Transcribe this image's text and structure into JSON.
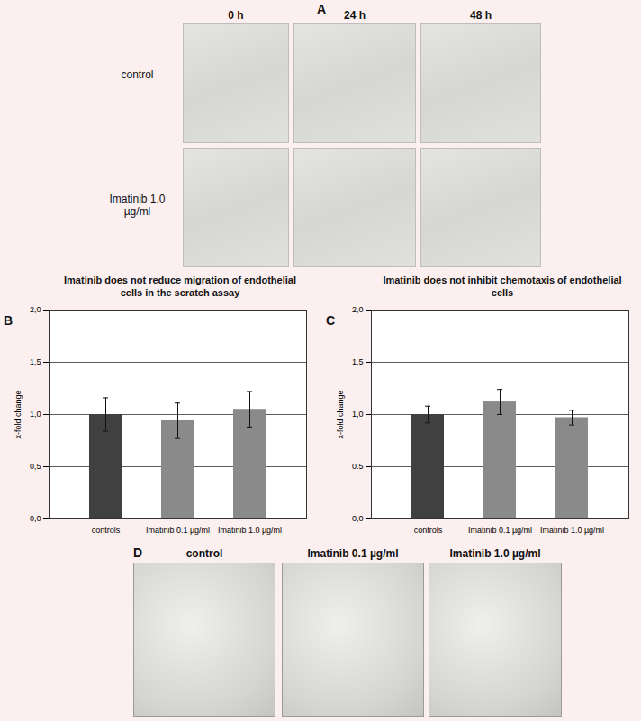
{
  "panel_a": {
    "label": "A",
    "columns": [
      "0 h",
      "24 h",
      "48 h"
    ],
    "rows": [
      "control",
      "Imatinib 1.0 µg/ml"
    ]
  },
  "chart_data": [
    {
      "type": "bar",
      "panel_label": "B",
      "title": "Imatinib does not reduce migration of endothelial cells in the scratch assay",
      "y_label": "x-fold change",
      "categories": [
        "controls",
        "Imatinib 0.1 µg/ml",
        "Imatinib 1.0 µg/ml"
      ],
      "values": [
        1.0,
        0.94,
        1.05
      ],
      "errors": [
        0.16,
        0.17,
        0.17
      ],
      "colors": [
        "#404040",
        "#8a8a8a",
        "#8a8a8a"
      ],
      "ylim": [
        0,
        2
      ],
      "yticks": [
        {
          "value": 0,
          "label": "0,0"
        },
        {
          "value": 0.5,
          "label": "0,5"
        },
        {
          "value": 1,
          "label": "1,0"
        },
        {
          "value": 1.5,
          "label": "1,5"
        },
        {
          "value": 2,
          "label": "2,0"
        }
      ],
      "grid": true
    },
    {
      "type": "bar",
      "panel_label": "C",
      "title": "Imatinib does not inhibit chemotaxis of endothelial cells",
      "y_label": "x-fold change",
      "categories": [
        "controls",
        "Imatinib 0.1 µg/ml",
        "Imatinib 1.0 µg/ml"
      ],
      "values": [
        1.0,
        1.12,
        0.97
      ],
      "errors": [
        0.08,
        0.12,
        0.07
      ],
      "colors": [
        "#404040",
        "#8a8a8a",
        "#8a8a8a"
      ],
      "ylim": [
        0,
        2
      ],
      "yticks": [
        {
          "value": 0,
          "label": "0,0"
        },
        {
          "value": 0.5,
          "label": "0.5"
        },
        {
          "value": 1,
          "label": "1,0"
        },
        {
          "value": 1.5,
          "label": "1.5"
        },
        {
          "value": 2,
          "label": "2,0"
        }
      ],
      "grid": true
    }
  ],
  "panel_d": {
    "label": "D",
    "columns": [
      "control",
      "Imatinib 0.1 µg/ml",
      "Imatinib 1.0 µg/ml"
    ]
  }
}
